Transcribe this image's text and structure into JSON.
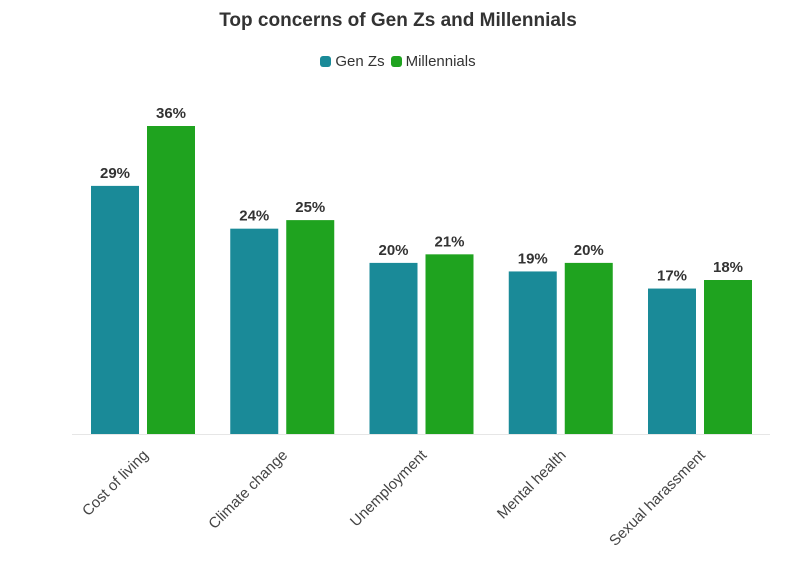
{
  "chart_data": {
    "type": "bar",
    "title": "Top concerns of Gen Zs and Millennials",
    "categories": [
      "Cost of living",
      "Climate change",
      "Unemployment",
      "Mental health",
      "Sexual harassment"
    ],
    "series": [
      {
        "name": "Gen Zs",
        "color": "#1a8a98",
        "values": [
          29,
          24,
          20,
          19,
          17
        ],
        "labels": [
          "29%",
          "24%",
          "20%",
          "19%",
          "17%"
        ]
      },
      {
        "name": "Millennials",
        "color": "#1fa31f",
        "values": [
          36,
          25,
          21,
          20,
          18
        ],
        "labels": [
          "36%",
          "25%",
          "21%",
          "20%",
          "18%"
        ]
      }
    ],
    "xlabel": "",
    "ylabel": "",
    "ylim": [
      0,
      36
    ],
    "grid": false,
    "legend": "top-center"
  }
}
